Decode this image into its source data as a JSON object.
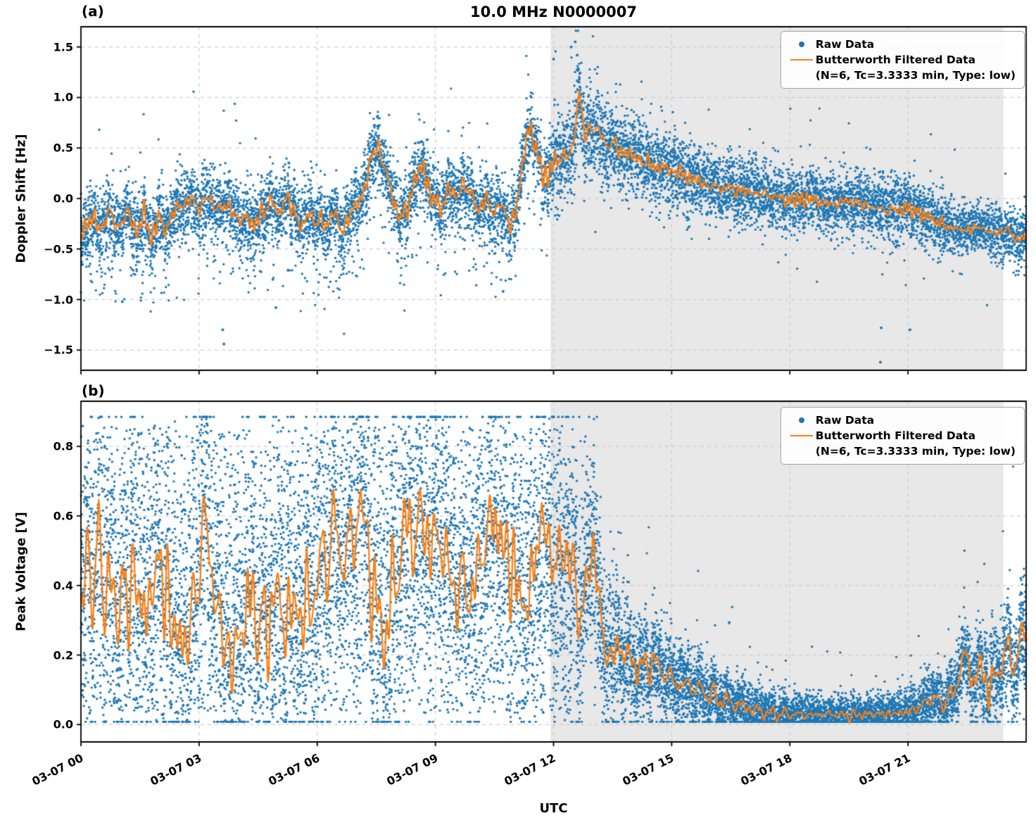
{
  "title": "10.0 MHz N0000007",
  "legend": {
    "raw": "Raw Data",
    "filtered_line1": "Butterworth Filtered Data",
    "filtered_line2": "(N=6, Tc=3.3333 min, Type: low)"
  },
  "colors": {
    "raw": "#1f77b4",
    "filtered": "#ff7f0e",
    "shade": "#e8e8e8",
    "grid": "#c9c9c9",
    "spine": "#000000"
  },
  "chart_data": {
    "type": "scatter",
    "xlabel": "UTC",
    "x_range_hours": [
      0,
      24
    ],
    "x_tick_values": [
      0,
      3,
      6,
      9,
      12,
      15,
      18,
      21
    ],
    "x_tick_labels": [
      "03-07 00",
      "03-07 03",
      "03-07 06",
      "03-07 09",
      "03-07 12",
      "03-07 15",
      "03-07 18",
      "03-07 21"
    ],
    "shade_span": [
      11.92,
      23.42
    ],
    "panels": [
      {
        "label": "(a)",
        "ylabel": "Doppler Shift [Hz]",
        "ylim": [
          -1.7,
          1.7
        ],
        "y_tick_values": [
          -1.5,
          -1.0,
          -0.5,
          0.0,
          0.5,
          1.0,
          1.5
        ],
        "y_tick_labels": [
          "−1.5",
          "−1.0",
          "−0.5",
          "0.0",
          "0.5",
          "1.0",
          "1.5"
        ],
        "seed": 101,
        "n_scatter": 11000,
        "dot_radius": 1.7,
        "clip": [
          -1.66,
          1.66
        ],
        "tail_prob": 0.012,
        "neg_tail": {
          "until": 12.2,
          "prob": 0.05,
          "min": 0.15,
          "max": 0.8
        },
        "filtered_control": [
          [
            0.0,
            -0.33
          ],
          [
            0.25,
            -0.2
          ],
          [
            0.5,
            -0.28
          ],
          [
            0.75,
            -0.15
          ],
          [
            1.0,
            -0.3
          ],
          [
            1.2,
            -0.1
          ],
          [
            1.4,
            -0.35
          ],
          [
            1.6,
            -0.15
          ],
          [
            1.8,
            -0.38
          ],
          [
            2.0,
            -0.2
          ],
          [
            2.2,
            -0.3
          ],
          [
            2.4,
            -0.1
          ],
          [
            2.6,
            -0.05
          ],
          [
            2.8,
            -0.02
          ],
          [
            3.0,
            -0.08
          ],
          [
            3.2,
            0.0
          ],
          [
            3.4,
            -0.05
          ],
          [
            3.6,
            -0.12
          ],
          [
            3.8,
            -0.05
          ],
          [
            4.0,
            -0.25
          ],
          [
            4.2,
            -0.15
          ],
          [
            4.4,
            -0.3
          ],
          [
            4.6,
            -0.12
          ],
          [
            4.8,
            -0.05
          ],
          [
            5.0,
            -0.12
          ],
          [
            5.2,
            -0.02
          ],
          [
            5.4,
            -0.1
          ],
          [
            5.6,
            -0.3
          ],
          [
            5.8,
            -0.15
          ],
          [
            6.0,
            -0.22
          ],
          [
            6.2,
            -0.28
          ],
          [
            6.4,
            -0.12
          ],
          [
            6.6,
            -0.33
          ],
          [
            6.8,
            -0.18
          ],
          [
            7.0,
            -0.08
          ],
          [
            7.2,
            0.1
          ],
          [
            7.4,
            0.42
          ],
          [
            7.55,
            0.55
          ],
          [
            7.7,
            0.3
          ],
          [
            7.9,
            0.05
          ],
          [
            8.1,
            -0.22
          ],
          [
            8.3,
            -0.08
          ],
          [
            8.5,
            0.22
          ],
          [
            8.7,
            0.3
          ],
          [
            8.9,
            0.02
          ],
          [
            9.1,
            -0.12
          ],
          [
            9.3,
            0.08
          ],
          [
            9.5,
            0.02
          ],
          [
            9.7,
            0.15
          ],
          [
            9.9,
            0.03
          ],
          [
            10.1,
            -0.1
          ],
          [
            10.3,
            -0.03
          ],
          [
            10.5,
            -0.12
          ],
          [
            10.7,
            -0.08
          ],
          [
            10.9,
            -0.25
          ],
          [
            11.05,
            -0.15
          ],
          [
            11.2,
            0.3
          ],
          [
            11.35,
            0.72
          ],
          [
            11.5,
            0.55
          ],
          [
            11.7,
            0.3
          ],
          [
            11.85,
            0.18
          ],
          [
            12.0,
            0.35
          ],
          [
            12.15,
            0.45
          ],
          [
            12.3,
            0.35
          ],
          [
            12.5,
            0.55
          ],
          [
            12.65,
            1.05
          ],
          [
            12.8,
            0.6
          ],
          [
            13.0,
            0.75
          ],
          [
            13.2,
            0.6
          ],
          [
            13.4,
            0.55
          ],
          [
            13.7,
            0.48
          ],
          [
            14.0,
            0.42
          ],
          [
            14.5,
            0.33
          ],
          [
            15.0,
            0.28
          ],
          [
            15.5,
            0.2
          ],
          [
            16.0,
            0.12
          ],
          [
            16.5,
            0.1
          ],
          [
            17.0,
            0.06
          ],
          [
            17.5,
            0.03
          ],
          [
            18.0,
            -0.02
          ],
          [
            18.5,
            0.0
          ],
          [
            19.0,
            -0.06
          ],
          [
            19.5,
            -0.02
          ],
          [
            20.0,
            -0.08
          ],
          [
            20.5,
            -0.12
          ],
          [
            21.0,
            -0.1
          ],
          [
            21.5,
            -0.18
          ],
          [
            22.0,
            -0.28
          ],
          [
            22.4,
            -0.32
          ],
          [
            22.8,
            -0.28
          ],
          [
            23.2,
            -0.35
          ],
          [
            23.5,
            -0.3
          ],
          [
            23.8,
            -0.42
          ],
          [
            24.0,
            -0.35
          ]
        ],
        "wiggle_amp": [
          [
            0,
            0.09
          ],
          [
            11,
            0.09
          ],
          [
            12,
            0.12
          ],
          [
            13.5,
            0.1
          ],
          [
            15,
            0.07
          ],
          [
            18,
            0.06
          ],
          [
            24,
            0.07
          ]
        ],
        "noise_band": [
          [
            0,
            0.17
          ],
          [
            11,
            0.16
          ],
          [
            11.5,
            0.15
          ],
          [
            12,
            0.2
          ],
          [
            13,
            0.23
          ],
          [
            14,
            0.2
          ],
          [
            16,
            0.17
          ],
          [
            18,
            0.15
          ],
          [
            20,
            0.16
          ],
          [
            21.5,
            0.14
          ],
          [
            22.5,
            0.12
          ],
          [
            24,
            0.14
          ]
        ],
        "notable_outliers": [
          [
            1.05,
            -1.02
          ],
          [
            3.6,
            -1.3
          ],
          [
            3.63,
            -1.44
          ],
          [
            4.95,
            -1.08
          ],
          [
            10.72,
            -0.92
          ],
          [
            12.0,
            1.38
          ],
          [
            12.45,
            1.5
          ],
          [
            12.55,
            1.55
          ],
          [
            12.6,
            1.42
          ],
          [
            20.3,
            -1.62
          ],
          [
            20.32,
            -1.28
          ],
          [
            21.05,
            -1.3
          ]
        ]
      },
      {
        "label": "(b)",
        "ylabel": "Peak Voltage [V]",
        "ylim": [
          -0.05,
          0.93
        ],
        "y_tick_values": [
          0.0,
          0.2,
          0.4,
          0.6,
          0.8
        ],
        "y_tick_labels": [
          "0.0",
          "0.2",
          "0.4",
          "0.6",
          "0.8"
        ],
        "seed": 202,
        "n_scatter": 14000,
        "dot_radius": 1.7,
        "clip": [
          0.008,
          0.885
        ],
        "tail_prob": 0.015,
        "mix_uniform": {
          "until": 12.6,
          "prob": 0.35,
          "lo": 0.03,
          "hi": 0.86
        },
        "filtered_control": [
          [
            0.0,
            0.3
          ],
          [
            0.15,
            0.5
          ],
          [
            0.3,
            0.38
          ],
          [
            0.45,
            0.55
          ],
          [
            0.6,
            0.35
          ],
          [
            0.75,
            0.45
          ],
          [
            0.9,
            0.28
          ],
          [
            1.05,
            0.42
          ],
          [
            1.2,
            0.33
          ],
          [
            1.35,
            0.45
          ],
          [
            1.5,
            0.35
          ],
          [
            1.65,
            0.3
          ],
          [
            1.8,
            0.4
          ],
          [
            2.0,
            0.47
          ],
          [
            2.2,
            0.35
          ],
          [
            2.4,
            0.27
          ],
          [
            2.6,
            0.22
          ],
          [
            2.8,
            0.3
          ],
          [
            3.0,
            0.44
          ],
          [
            3.15,
            0.62
          ],
          [
            3.3,
            0.45
          ],
          [
            3.5,
            0.3
          ],
          [
            3.7,
            0.22
          ],
          [
            3.9,
            0.18
          ],
          [
            4.1,
            0.3
          ],
          [
            4.3,
            0.36
          ],
          [
            4.5,
            0.3
          ],
          [
            4.7,
            0.26
          ],
          [
            4.9,
            0.38
          ],
          [
            5.1,
            0.33
          ],
          [
            5.3,
            0.3
          ],
          [
            5.5,
            0.35
          ],
          [
            5.7,
            0.31
          ],
          [
            5.9,
            0.38
          ],
          [
            6.1,
            0.45
          ],
          [
            6.3,
            0.52
          ],
          [
            6.5,
            0.56
          ],
          [
            6.7,
            0.46
          ],
          [
            6.9,
            0.55
          ],
          [
            7.1,
            0.63
          ],
          [
            7.3,
            0.5
          ],
          [
            7.5,
            0.32
          ],
          [
            7.7,
            0.26
          ],
          [
            7.9,
            0.36
          ],
          [
            8.1,
            0.5
          ],
          [
            8.3,
            0.58
          ],
          [
            8.5,
            0.54
          ],
          [
            8.7,
            0.6
          ],
          [
            8.9,
            0.5
          ],
          [
            9.1,
            0.55
          ],
          [
            9.3,
            0.46
          ],
          [
            9.5,
            0.37
          ],
          [
            9.7,
            0.42
          ],
          [
            9.9,
            0.36
          ],
          [
            10.1,
            0.46
          ],
          [
            10.3,
            0.55
          ],
          [
            10.5,
            0.6
          ],
          [
            10.7,
            0.52
          ],
          [
            10.9,
            0.46
          ],
          [
            11.1,
            0.4
          ],
          [
            11.3,
            0.32
          ],
          [
            11.5,
            0.46
          ],
          [
            11.7,
            0.6
          ],
          [
            11.9,
            0.5
          ],
          [
            12.1,
            0.46
          ],
          [
            12.3,
            0.52
          ],
          [
            12.5,
            0.42
          ],
          [
            12.7,
            0.32
          ],
          [
            12.85,
            0.38
          ],
          [
            13.0,
            0.55
          ],
          [
            13.15,
            0.35
          ],
          [
            13.3,
            0.22
          ],
          [
            13.5,
            0.19
          ],
          [
            13.7,
            0.23
          ],
          [
            13.9,
            0.19
          ],
          [
            14.2,
            0.16
          ],
          [
            14.5,
            0.18
          ],
          [
            14.8,
            0.15
          ],
          [
            15.1,
            0.12
          ],
          [
            15.5,
            0.11
          ],
          [
            15.9,
            0.09
          ],
          [
            16.3,
            0.07
          ],
          [
            16.7,
            0.055
          ],
          [
            17.1,
            0.04
          ],
          [
            17.5,
            0.032
          ],
          [
            18.0,
            0.03
          ],
          [
            18.5,
            0.027
          ],
          [
            19.0,
            0.03
          ],
          [
            19.5,
            0.026
          ],
          [
            20.0,
            0.03
          ],
          [
            20.5,
            0.03
          ],
          [
            21.0,
            0.036
          ],
          [
            21.3,
            0.05
          ],
          [
            21.6,
            0.08
          ],
          [
            21.9,
            0.06
          ],
          [
            22.2,
            0.1
          ],
          [
            22.45,
            0.21
          ],
          [
            22.65,
            0.12
          ],
          [
            22.85,
            0.17
          ],
          [
            23.05,
            0.1
          ],
          [
            23.25,
            0.14
          ],
          [
            23.5,
            0.22
          ],
          [
            23.7,
            0.17
          ],
          [
            23.85,
            0.24
          ],
          [
            24.0,
            0.27
          ]
        ],
        "wiggle_amp": [
          [
            0,
            0.12
          ],
          [
            12.5,
            0.12
          ],
          [
            13.2,
            0.06
          ],
          [
            14,
            0.04
          ],
          [
            16,
            0.025
          ],
          [
            18,
            0.015
          ],
          [
            21,
            0.015
          ],
          [
            21.8,
            0.03
          ],
          [
            22.5,
            0.045
          ],
          [
            24,
            0.05
          ]
        ],
        "noise_band": [
          [
            0,
            0.19
          ],
          [
            12.4,
            0.19
          ],
          [
            13,
            0.14
          ],
          [
            14,
            0.08
          ],
          [
            15,
            0.06
          ],
          [
            16,
            0.045
          ],
          [
            17,
            0.035
          ],
          [
            18,
            0.028
          ],
          [
            20,
            0.028
          ],
          [
            21,
            0.032
          ],
          [
            21.8,
            0.045
          ],
          [
            22.6,
            0.06
          ],
          [
            23.4,
            0.07
          ],
          [
            24,
            0.08
          ]
        ],
        "notable_outliers": []
      }
    ]
  }
}
